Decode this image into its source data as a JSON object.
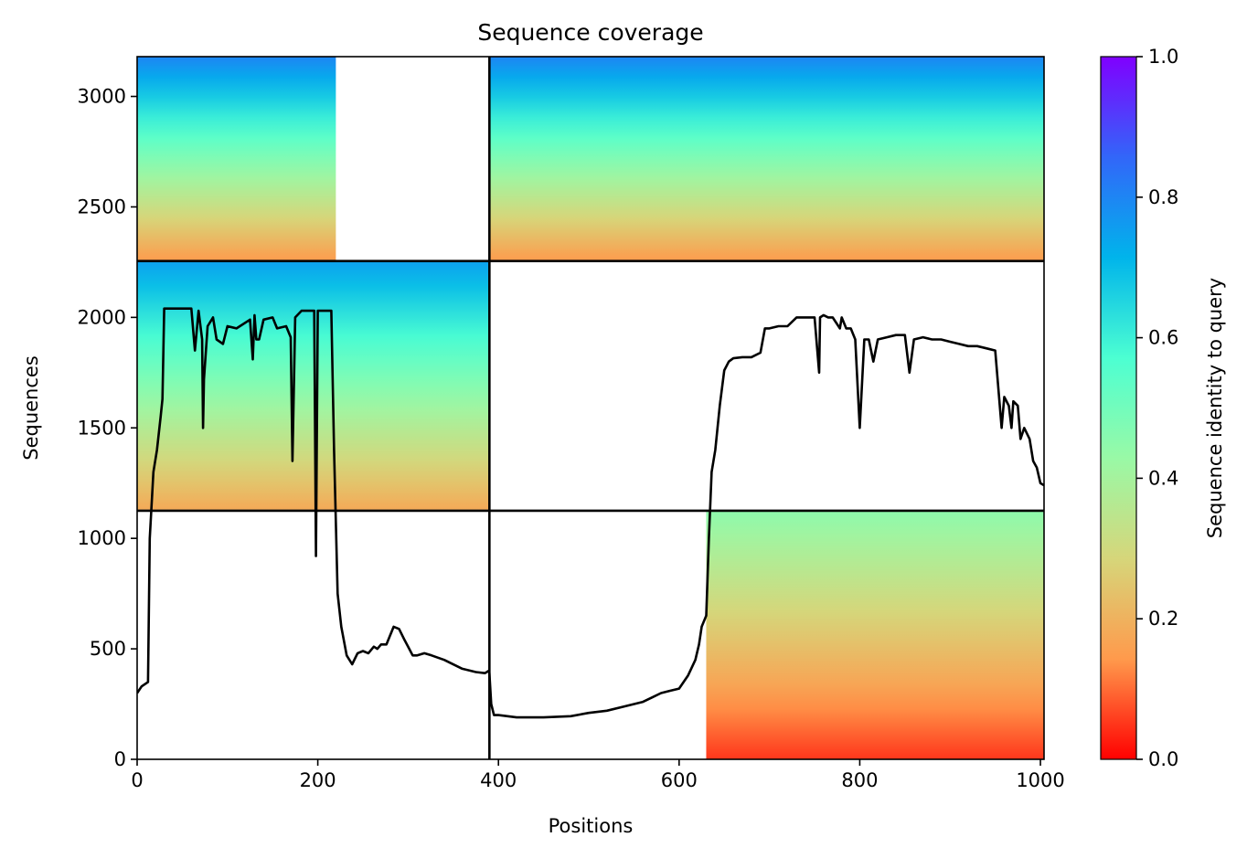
{
  "chart_data": {
    "type": "heatmap",
    "title": "Sequence coverage",
    "xlabel": "Positions",
    "ylabel": "Sequences",
    "xlim": [
      0,
      1004
    ],
    "ylim": [
      0,
      3180
    ],
    "x_ticks": [
      0,
      200,
      400,
      600,
      800,
      1000
    ],
    "y_ticks": [
      0,
      500,
      1000,
      1500,
      2000,
      2500,
      3000
    ],
    "colorbar": {
      "label": "Sequence identity to query",
      "range": [
        0.0,
        1.0
      ],
      "ticks": [
        "0.0",
        "0.2",
        "0.4",
        "0.6",
        "0.8",
        "1.0"
      ],
      "colormap": "rainbow_r",
      "stops": [
        "#ff0000",
        "#ff9a4c",
        "#d6d67a",
        "#99f9a6",
        "#4cffd2",
        "#00b4eb",
        "#3266f9",
        "#8000ff"
      ]
    },
    "chain_boundaries_x": [
      390
    ],
    "chain_boundaries_y": [
      1125,
      2255
    ],
    "coverage_blocks": [
      {
        "x0": 0,
        "x1": 220,
        "y0": 2260,
        "y1": 3180,
        "id_top": 0.8,
        "id_bottom": 0.15
      },
      {
        "x0": 390,
        "x1": 1004,
        "y0": 2260,
        "y1": 3180,
        "id_top": 0.8,
        "id_bottom": 0.15
      },
      {
        "x0": 0,
        "x1": 390,
        "y0": 1130,
        "y1": 2255,
        "id_top": 0.75,
        "id_bottom": 0.18
      },
      {
        "x0": 630,
        "x1": 1004,
        "y0": 0,
        "y1": 1125,
        "id_top": 0.45,
        "id_bottom": 0.05
      }
    ],
    "series": [
      {
        "type": "line",
        "color": "#000000",
        "x": [
          0,
          5,
          12,
          14,
          18,
          22,
          26,
          28,
          30,
          60,
          64,
          68,
          72,
          73,
          74,
          78,
          84,
          88,
          95,
          100,
          110,
          125,
          128,
          130,
          132,
          135,
          140,
          150,
          155,
          165,
          170,
          172,
          175,
          182,
          190,
          196,
          198,
          200,
          205,
          210,
          215,
          218,
          222,
          226,
          232,
          238,
          244,
          250,
          256,
          262,
          266,
          270,
          276,
          284,
          290,
          296,
          300,
          305,
          310,
          318,
          326,
          340,
          360,
          375,
          385,
          389,
          390,
          392,
          395,
          400,
          420,
          450,
          480,
          500,
          520,
          540,
          560,
          570,
          580,
          590,
          600,
          610,
          618,
          622,
          625,
          630,
          633,
          636,
          640,
          645,
          650,
          655,
          660,
          670,
          680,
          690,
          695,
          700,
          710,
          720,
          730,
          740,
          750,
          755,
          756,
          760,
          765,
          770,
          778,
          780,
          785,
          790,
          795,
          800,
          805,
          810,
          815,
          820,
          830,
          840,
          850,
          855,
          860,
          870,
          880,
          890,
          900,
          910,
          920,
          930,
          940,
          950,
          955,
          957,
          960,
          965,
          968,
          970,
          975,
          978,
          982,
          988,
          992,
          996,
          1000,
          1004
        ],
        "y": [
          300,
          330,
          350,
          1000,
          1300,
          1400,
          1550,
          1630,
          2040,
          2040,
          1850,
          2030,
          1900,
          1500,
          1720,
          1960,
          2000,
          1900,
          1880,
          1960,
          1950,
          1990,
          1810,
          2010,
          1900,
          1900,
          1990,
          2000,
          1950,
          1960,
          1910,
          1350,
          2000,
          2030,
          2030,
          2030,
          920,
          2030,
          2030,
          2030,
          2030,
          1400,
          750,
          600,
          470,
          430,
          480,
          490,
          480,
          510,
          500,
          520,
          520,
          600,
          590,
          540,
          510,
          470,
          470,
          480,
          470,
          450,
          410,
          395,
          390,
          400,
          390,
          250,
          200,
          200,
          190,
          190,
          195,
          210,
          220,
          240,
          260,
          280,
          300,
          310,
          320,
          380,
          450,
          520,
          600,
          650,
          1000,
          1300,
          1400,
          1600,
          1760,
          1800,
          1815,
          1820,
          1820,
          1840,
          1950,
          1950,
          1960,
          1960,
          2000,
          2000,
          2000,
          1750,
          2000,
          2010,
          2000,
          2000,
          1950,
          2000,
          1950,
          1950,
          1900,
          1500,
          1900,
          1900,
          1800,
          1900,
          1910,
          1920,
          1920,
          1750,
          1900,
          1910,
          1900,
          1900,
          1890,
          1880,
          1870,
          1870,
          1860,
          1850,
          1600,
          1500,
          1640,
          1600,
          1500,
          1620,
          1600,
          1450,
          1500,
          1450,
          1350,
          1320,
          1250,
          1240
        ]
      }
    ],
    "grid": false,
    "legend": "none"
  }
}
